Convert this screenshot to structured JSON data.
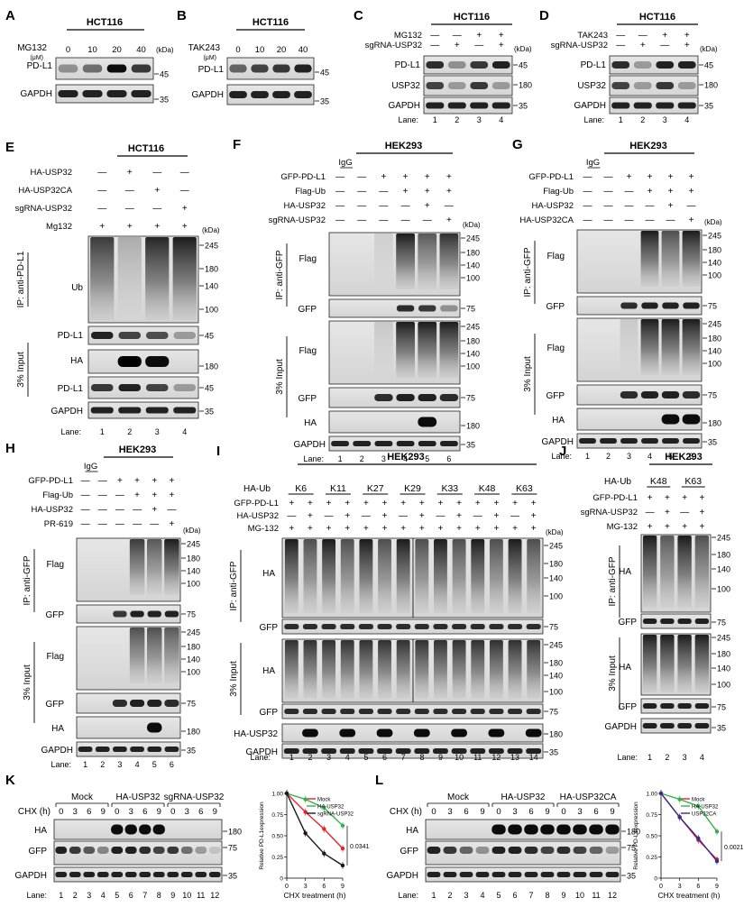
{
  "common": {
    "mw_unit": "(kDa)",
    "lane_label": "Lane:",
    "ip_gfp": "IP: anti-GFP",
    "ip_pdl1": "IP: anti-PD-L1",
    "input3": "3% Input",
    "igg": "IgG"
  },
  "panels": {
    "A": {
      "letter": "A",
      "cell": "HCT116",
      "treat": "MG132",
      "unit": "(μM)",
      "doses": [
        "0",
        "10",
        "20",
        "40"
      ],
      "bands": [
        "PD-L1",
        "GAPDH"
      ],
      "mw": [
        "45",
        "35"
      ]
    },
    "B": {
      "letter": "B",
      "cell": "HCT116",
      "treat": "TAK243",
      "unit": "(μM)",
      "doses": [
        "0",
        "10",
        "20",
        "40"
      ],
      "bands": [
        "PD-L1",
        "GAPDH"
      ],
      "mw": [
        "45",
        "35"
      ]
    },
    "C": {
      "letter": "C",
      "cell": "HCT116",
      "conds": [
        {
          "label": "MG132",
          "signs": [
            "—",
            "—",
            "+",
            "+"
          ]
        },
        {
          "label": "sgRNA-USP32",
          "signs": [
            "—",
            "+",
            "—",
            "+"
          ]
        }
      ],
      "bands": [
        "PD-L1",
        "USP32",
        "GAPDH"
      ],
      "mw": [
        "45",
        "180",
        "35"
      ],
      "lanes": [
        "1",
        "2",
        "3",
        "4"
      ]
    },
    "D": {
      "letter": "D",
      "cell": "HCT116",
      "conds": [
        {
          "label": "TAK243",
          "signs": [
            "—",
            "—",
            "+",
            "+"
          ]
        },
        {
          "label": "sgRNA-USP32",
          "signs": [
            "—",
            "+",
            "—",
            "+"
          ]
        }
      ],
      "bands": [
        "PD-L1",
        "USP32",
        "GAPDH"
      ],
      "mw": [
        "45",
        "180",
        "35"
      ],
      "lanes": [
        "1",
        "2",
        "3",
        "4"
      ]
    },
    "E": {
      "letter": "E",
      "cell": "HCT116",
      "conds": [
        {
          "label": "HA-USP32",
          "signs": [
            "—",
            "+",
            "—",
            "—"
          ]
        },
        {
          "label": "HA-USP32CA",
          "signs": [
            "—",
            "—",
            "+",
            "—"
          ]
        },
        {
          "label": "sgRNA-USP32",
          "signs": [
            "—",
            "—",
            "—",
            "+"
          ]
        },
        {
          "label": "Mg132",
          "signs": [
            "+",
            "+",
            "+",
            "+"
          ]
        }
      ],
      "bands": [
        "Ub",
        "PD-L1",
        "HA",
        "PD-L1",
        "GAPDH"
      ],
      "mw_ub": [
        "245",
        "180",
        "140",
        "100"
      ],
      "mw": [
        "45",
        "180",
        "45",
        "35"
      ],
      "lanes": [
        "1",
        "2",
        "3",
        "4"
      ]
    },
    "F": {
      "letter": "F",
      "cell": "HEK293",
      "conds": [
        {
          "label": "GFP-PD-L1",
          "signs": [
            "—",
            "—",
            "+",
            "+",
            "+",
            "+"
          ]
        },
        {
          "label": "Flag-Ub",
          "signs": [
            "—",
            "—",
            "—",
            "+",
            "+",
            "+"
          ]
        },
        {
          "label": "HA-USP32",
          "signs": [
            "—",
            "—",
            "—",
            "—",
            "+",
            "—"
          ]
        },
        {
          "label": "sgRNA-USP32",
          "signs": [
            "—",
            "—",
            "—",
            "—",
            "—",
            "+"
          ]
        }
      ],
      "bands": [
        "Flag",
        "GFP",
        "Flag",
        "GFP",
        "HA",
        "GAPDH"
      ],
      "mw_smear": [
        "245",
        "180",
        "140",
        "100"
      ],
      "mw": [
        "75",
        "75",
        "180",
        "35"
      ],
      "lanes": [
        "1",
        "2",
        "3",
        "4",
        "5",
        "6"
      ]
    },
    "G": {
      "letter": "G",
      "cell": "HEK293",
      "conds": [
        {
          "label": "GFP-PD-L1",
          "signs": [
            "—",
            "—",
            "+",
            "+",
            "+",
            "+"
          ]
        },
        {
          "label": "Flag-Ub",
          "signs": [
            "—",
            "—",
            "—",
            "+",
            "+",
            "+"
          ]
        },
        {
          "label": "HA-USP32",
          "signs": [
            "—",
            "—",
            "—",
            "—",
            "+",
            "—"
          ]
        },
        {
          "label": "HA-USP32CA",
          "signs": [
            "—",
            "—",
            "—",
            "—",
            "—",
            "+"
          ]
        }
      ],
      "bands": [
        "Flag",
        "GFP",
        "Flag",
        "GFP",
        "HA",
        "GAPDH"
      ],
      "mw_smear": [
        "245",
        "180",
        "140",
        "100"
      ],
      "mw": [
        "75",
        "75",
        "180",
        "35"
      ],
      "lanes": [
        "1",
        "2",
        "3",
        "4",
        "5",
        "6"
      ]
    },
    "H": {
      "letter": "H",
      "cell": "HEK293",
      "conds": [
        {
          "label": "GFP-PD-L1",
          "signs": [
            "—",
            "—",
            "+",
            "+",
            "+",
            "+"
          ]
        },
        {
          "label": "Flag-Ub",
          "signs": [
            "—",
            "—",
            "—",
            "+",
            "+",
            "+"
          ]
        },
        {
          "label": "HA-USP32",
          "signs": [
            "—",
            "—",
            "—",
            "—",
            "+",
            "—"
          ]
        },
        {
          "label": "PR-619",
          "signs": [
            "—",
            "—",
            "—",
            "—",
            "—",
            "+"
          ]
        }
      ],
      "bands": [
        "Flag",
        "GFP",
        "Flag",
        "GFP",
        "HA",
        "GAPDH"
      ],
      "mw_smear": [
        "245",
        "180",
        "140",
        "100"
      ],
      "mw": [
        "75",
        "75",
        "180",
        "35"
      ],
      "lanes": [
        "1",
        "2",
        "3",
        "4",
        "5",
        "6"
      ]
    },
    "I": {
      "letter": "I",
      "cell": "HEK293",
      "ha_ub": "HA-Ub",
      "ub_types": [
        "K6",
        "K11",
        "K27",
        "K29",
        "K33",
        "K48",
        "K63"
      ],
      "conds": [
        {
          "label": "GFP-PD-L1",
          "signs": [
            "+",
            "+",
            "+",
            "+",
            "+",
            "+",
            "+",
            "+",
            "+",
            "+",
            "+",
            "+",
            "+",
            "+"
          ]
        },
        {
          "label": "HA-USP32",
          "signs": [
            "—",
            "+",
            "—",
            "+",
            "—",
            "+",
            "—",
            "+",
            "—",
            "+",
            "—",
            "+",
            "—",
            "+"
          ]
        },
        {
          "label": "MG-132",
          "signs": [
            "+",
            "+",
            "+",
            "+",
            "+",
            "+",
            "+",
            "+",
            "+",
            "+",
            "+",
            "+",
            "+",
            "+"
          ]
        }
      ],
      "bands": [
        "HA",
        "GFP",
        "HA",
        "GFP",
        "HA-USP32",
        "GAPDH"
      ],
      "mw_smear": [
        "245",
        "180",
        "140",
        "100"
      ],
      "mw": [
        "75",
        "75",
        "180",
        "35"
      ],
      "lanes": [
        "1",
        "2",
        "3",
        "4",
        "5",
        "6",
        "7",
        "8",
        "9",
        "10",
        "11",
        "12",
        "13",
        "14"
      ]
    },
    "J": {
      "letter": "J",
      "cell": "HEK293",
      "ha_ub": "HA-Ub",
      "ub_types": [
        "K48",
        "K63"
      ],
      "conds": [
        {
          "label": "GFP-PD-L1",
          "signs": [
            "+",
            "+",
            "+",
            "+"
          ]
        },
        {
          "label": "sgRNA-USP32",
          "signs": [
            "—",
            "+",
            "—",
            "+"
          ]
        },
        {
          "label": "MG-132",
          "signs": [
            "+",
            "+",
            "+",
            "+"
          ]
        }
      ],
      "bands": [
        "HA",
        "GFP",
        "HA",
        "GFP",
        "GAPDH"
      ],
      "mw_smear": [
        "245",
        "180",
        "140",
        "100"
      ],
      "mw": [
        "75",
        "75",
        "35"
      ],
      "lanes": [
        "1",
        "2",
        "3",
        "4"
      ]
    },
    "K": {
      "letter": "K",
      "groups": [
        "Mock",
        "HA-USP32",
        "sgRNA-USP32"
      ],
      "chx_label": "CHX (h)",
      "times": [
        "0",
        "3",
        "6",
        "9",
        "0",
        "3",
        "6",
        "9",
        "0",
        "3",
        "6",
        "9"
      ],
      "bands": [
        "HA",
        "GFP",
        "GAPDH"
      ],
      "mw": [
        "180",
        "75",
        "35"
      ],
      "lanes": [
        "1",
        "2",
        "3",
        "4",
        "5",
        "6",
        "7",
        "8",
        "9",
        "10",
        "11",
        "12"
      ]
    },
    "L": {
      "letter": "L",
      "groups": [
        "Mock",
        "HA-USP32",
        "HA-USP32CA"
      ],
      "chx_label": "CHX (h)",
      "times": [
        "0",
        "3",
        "6",
        "9",
        "0",
        "3",
        "6",
        "9",
        "0",
        "3",
        "6",
        "9"
      ],
      "bands": [
        "HA",
        "GFP",
        "GAPDH"
      ],
      "mw": [
        "180",
        "75",
        "35"
      ],
      "lanes": [
        "1",
        "2",
        "3",
        "4",
        "5",
        "6",
        "7",
        "8",
        "9",
        "10",
        "11",
        "12"
      ]
    }
  },
  "chart_data": [
    {
      "type": "line",
      "xlabel": "CHX treatment (h)",
      "ylabel": "Relative PD-L1expression",
      "x": [
        0,
        3,
        6,
        9
      ],
      "xlim": [
        0,
        9
      ],
      "ylim": [
        0,
        1.0
      ],
      "yticks": [
        "0",
        "0.25",
        "0.50",
        "0.75",
        "1.00"
      ],
      "legend_position": "top-right",
      "series": [
        {
          "name": "Mock",
          "color": "#e8222a",
          "values": [
            1.0,
            0.78,
            0.58,
            0.35
          ]
        },
        {
          "name": "HA-USP32",
          "color": "#35b34a",
          "values": [
            1.0,
            0.93,
            0.83,
            0.62
          ]
        },
        {
          "name": "sgRNA-USP32",
          "color": "#1a1a1a",
          "values": [
            1.0,
            0.53,
            0.29,
            0.15
          ]
        }
      ],
      "annotation": "0.0341"
    },
    {
      "type": "line",
      "xlabel": "CHX treatment (h)",
      "ylabel": "Relative PD-L1expression",
      "x": [
        0,
        3,
        6,
        9
      ],
      "xlim": [
        0,
        9
      ],
      "ylim": [
        0,
        1.0
      ],
      "yticks": [
        "0",
        "0.25",
        "0.50",
        "0.75",
        "1.00"
      ],
      "legend_position": "top-right",
      "series": [
        {
          "name": "Mock",
          "color": "#e8222a",
          "values": [
            1.0,
            0.72,
            0.45,
            0.22
          ]
        },
        {
          "name": "HA-USP32",
          "color": "#35b34a",
          "values": [
            1.0,
            0.93,
            0.85,
            0.55
          ]
        },
        {
          "name": "USP32CA",
          "color": "#3a2a8c",
          "values": [
            1.0,
            0.72,
            0.47,
            0.2
          ]
        }
      ],
      "annotation": "0.0021"
    }
  ]
}
